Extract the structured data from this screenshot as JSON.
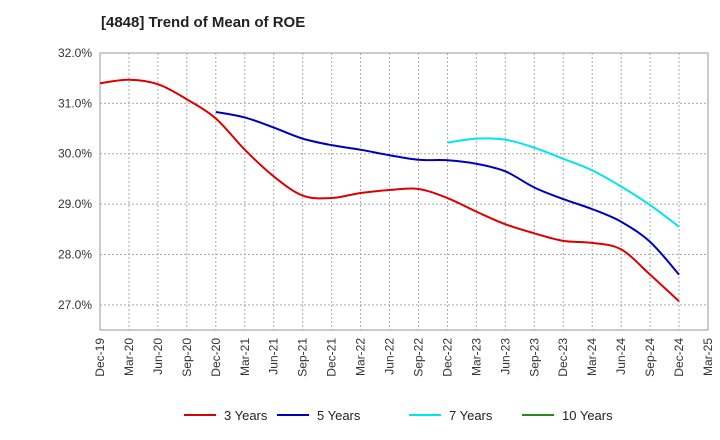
{
  "chart_data": {
    "type": "line",
    "title": "[4848]  Trend of Mean of ROE",
    "xlabel": "",
    "ylabel": "",
    "x": [
      "Dec-19",
      "Mar-20",
      "Jun-20",
      "Sep-20",
      "Dec-20",
      "Mar-21",
      "Jun-21",
      "Sep-21",
      "Dec-21",
      "Mar-22",
      "Jun-22",
      "Sep-22",
      "Dec-22",
      "Mar-23",
      "Jun-23",
      "Sep-23",
      "Dec-23",
      "Mar-24",
      "Jun-24",
      "Sep-24",
      "Dec-24",
      "Mar-25"
    ],
    "x_tick_labels": [
      "Dec-19",
      "Mar-20",
      "Jun-20",
      "Sep-20",
      "Dec-20",
      "Mar-21",
      "Jun-21",
      "Sep-21",
      "Dec-21",
      "Mar-22",
      "Jun-22",
      "Sep-22",
      "Dec-22",
      "Mar-23",
      "Jun-23",
      "Sep-23",
      "Dec-23",
      "Mar-24",
      "Jun-24",
      "Sep-24",
      "Dec-24",
      "Mar-25"
    ],
    "y_tick_labels": [
      "27.0%",
      "28.0%",
      "29.0%",
      "30.0%",
      "31.0%",
      "32.0%"
    ],
    "y_ticks": [
      27,
      28,
      29,
      30,
      31,
      32
    ],
    "ylim": [
      26.5,
      32.0
    ],
    "grid": true,
    "legend_position": "bottom",
    "series": [
      {
        "name": "3 Years",
        "color": "#dd0000",
        "values": [
          31.4,
          31.47,
          31.38,
          31.08,
          30.7,
          30.08,
          29.55,
          29.17,
          29.12,
          29.22,
          29.28,
          29.3,
          29.12,
          28.85,
          28.6,
          28.42,
          28.27,
          28.23,
          28.1,
          27.6,
          27.07,
          null
        ]
      },
      {
        "name": "5 Years",
        "color": "#0000bb",
        "values": [
          null,
          null,
          null,
          null,
          30.83,
          30.72,
          30.52,
          30.3,
          30.17,
          30.08,
          29.97,
          29.88,
          29.87,
          29.8,
          29.65,
          29.33,
          29.1,
          28.9,
          28.65,
          28.25,
          27.6,
          null
        ]
      },
      {
        "name": "7 Years",
        "color": "#00e5ee",
        "values": [
          null,
          null,
          null,
          null,
          null,
          null,
          null,
          null,
          null,
          null,
          null,
          null,
          30.22,
          30.3,
          30.28,
          30.12,
          29.9,
          29.67,
          29.35,
          28.98,
          28.55,
          null
        ]
      },
      {
        "name": "10 Years",
        "color": "#228b22",
        "values": [
          null,
          null,
          null,
          null,
          null,
          null,
          null,
          null,
          null,
          null,
          null,
          null,
          null,
          null,
          null,
          null,
          null,
          null,
          null,
          null,
          null,
          null
        ]
      }
    ]
  }
}
